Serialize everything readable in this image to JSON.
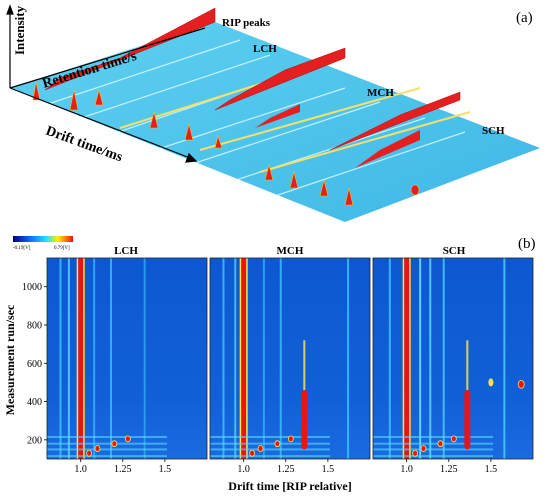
{
  "chart_data": [
    {
      "type": "area",
      "panel_label": "(a)",
      "axis_labels": {
        "z": "Intensity",
        "y": "Retention time/s",
        "x": "Drift time/ms"
      },
      "annotations": [
        "RIP peaks",
        "LCH",
        "MCH",
        "SCH"
      ],
      "series": [
        {
          "name": "LCH"
        },
        {
          "name": "MCH"
        },
        {
          "name": "SCH"
        }
      ]
    },
    {
      "type": "heatmap",
      "panel_label": "(b)",
      "xlabel": "Drift time [RIP relative]",
      "ylabel": "Measurement run/sec",
      "colorbar": {
        "min_label": "-0.19[V]",
        "max_label": "0.79[V]"
      },
      "panels": [
        {
          "title": "LCH",
          "x_ticks": [
            "1.0",
            "1.25",
            "1.5"
          ]
        },
        {
          "title": "MCH",
          "x_ticks": [
            "1.0",
            "1.25",
            "1.5"
          ]
        },
        {
          "title": "SCH",
          "x_ticks": [
            "1.0",
            "1.25",
            "1.5"
          ]
        }
      ],
      "y_ticks": [
        200,
        400,
        600,
        800,
        1000
      ],
      "ylim": [
        100,
        1150
      ],
      "xlim": [
        0.8,
        1.75
      ]
    }
  ]
}
